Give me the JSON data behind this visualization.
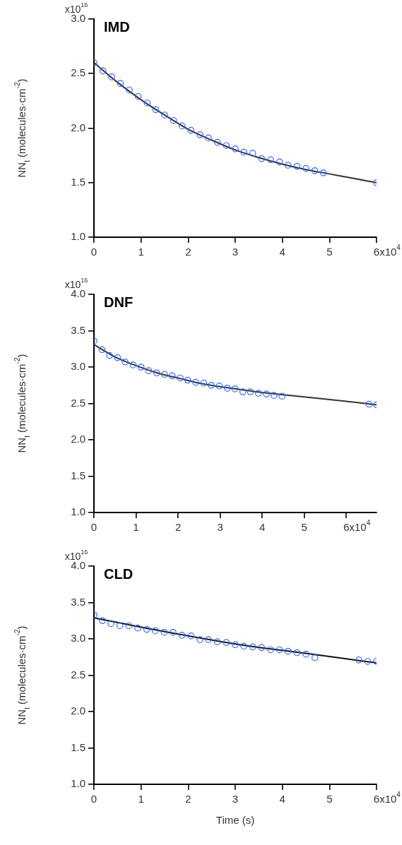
{
  "chart_data": [
    {
      "type": "scatter",
      "title": "IMD",
      "ylabel": "NN$_{t}$ (molecules·cm$^{-2}$)",
      "annotations": [
        "x10$^{16}$",
        "x10$^{4}$"
      ],
      "xlim": [
        0,
        6
      ],
      "xticks": [
        0,
        1,
        2,
        3,
        4,
        5,
        6
      ],
      "ylim": [
        1,
        3
      ],
      "yticks": [
        {
          "value": 1,
          "label": "1.0"
        },
        1.5,
        {
          "value": 2,
          "label": "2.0"
        },
        2.5,
        {
          "value": 3,
          "label": "3.0"
        }
      ],
      "grid": false,
      "legend": false,
      "series": [
        {
          "type": "scatter",
          "color": "#3366ff",
          "marker": "circle",
          "x": [
            0,
            0.19,
            0.375,
            0.56,
            0.75,
            0.94,
            1.13,
            1.31,
            1.5,
            1.69,
            1.87,
            2.06,
            2.25,
            2.43,
            2.62,
            2.81,
            3.0,
            3.18,
            3.37,
            3.56,
            3.75,
            3.94,
            4.12,
            4.31,
            4.5,
            4.69,
            4.87,
            6.0
          ],
          "values": [
            2.6,
            2.525,
            2.47,
            2.41,
            2.35,
            2.29,
            2.23,
            2.17,
            2.12,
            2.07,
            2.02,
            1.98,
            1.94,
            1.91,
            1.87,
            1.84,
            1.81,
            1.78,
            1.77,
            1.72,
            1.71,
            1.69,
            1.66,
            1.65,
            1.63,
            1.61,
            1.59,
            1.5
          ]
        },
        {
          "type": "line",
          "color": "#333333",
          "marker": "none",
          "line_style": "solid",
          "x": [
            0,
            0.5,
            1,
            1.5,
            2,
            2.5,
            3,
            3.5,
            4,
            4.5,
            5,
            5.5,
            6
          ],
          "values": [
            2.6,
            2.42,
            2.26,
            2.12,
            1.99,
            1.89,
            1.8,
            1.73,
            1.67,
            1.62,
            1.58,
            1.54,
            1.5
          ]
        }
      ]
    },
    {
      "type": "scatter",
      "title": "DNF",
      "ylabel": "NN$_{t}$ (molecules·cm$^{-2}$)",
      "annotations": [
        "x10$^{16}$",
        "x10$^{4}$"
      ],
      "xlim": [
        0,
        6.72
      ],
      "xticks": [
        0,
        1,
        2,
        3,
        4,
        5,
        6
      ],
      "ylim": [
        1,
        4
      ],
      "yticks": [
        {
          "value": 1,
          "label": "1.0"
        },
        1.5,
        {
          "value": 2,
          "label": "2.0"
        },
        2.5,
        {
          "value": 3,
          "label": "3.0"
        },
        3.5,
        {
          "value": 4,
          "label": "4.0"
        }
      ],
      "grid": false,
      "legend": false,
      "series": [
        {
          "type": "scatter",
          "color": "#3366ff",
          "marker": "circle",
          "x": [
            0,
            0.19,
            0.37,
            0.56,
            0.74,
            0.93,
            1.12,
            1.3,
            1.49,
            1.68,
            1.86,
            2.05,
            2.23,
            2.42,
            2.61,
            2.79,
            2.98,
            3.17,
            3.35,
            3.54,
            3.72,
            3.91,
            4.1,
            4.28,
            4.47,
            6.54,
            6.72
          ],
          "values": [
            3.36,
            3.24,
            3.16,
            3.13,
            3.07,
            3.03,
            3.0,
            2.95,
            2.92,
            2.9,
            2.88,
            2.85,
            2.82,
            2.79,
            2.78,
            2.75,
            2.74,
            2.71,
            2.7,
            2.66,
            2.66,
            2.64,
            2.63,
            2.61,
            2.6,
            2.49,
            2.48
          ]
        },
        {
          "type": "line",
          "color": "#333333",
          "marker": "none",
          "line_style": "solid",
          "x": [
            0,
            0.5,
            1,
            1.5,
            2,
            2.5,
            3,
            3.5,
            4,
            5,
            6,
            6.72
          ],
          "values": [
            3.31,
            3.14,
            3.02,
            2.92,
            2.85,
            2.78,
            2.73,
            2.69,
            2.65,
            2.59,
            2.53,
            2.48
          ]
        }
      ]
    },
    {
      "type": "scatter",
      "title": "CLD",
      "xlabel": "Time (s)",
      "ylabel": "NN$_{t}$ (molecules·cm$^{-2}$)",
      "annotations": [
        "x10$^{16}$",
        "x10$^{4}$"
      ],
      "xlim": [
        0,
        6
      ],
      "xticks": [
        0,
        1,
        2,
        3,
        4,
        5,
        6
      ],
      "ylim": [
        1,
        4
      ],
      "yticks": [
        {
          "value": 1,
          "label": "1.0"
        },
        1.5,
        {
          "value": 2,
          "label": "2.0"
        },
        2.5,
        {
          "value": 3,
          "label": "3.0"
        },
        3.5,
        {
          "value": 4,
          "label": "4.0"
        }
      ],
      "grid": false,
      "legend": false,
      "series": [
        {
          "type": "scatter",
          "color": "#3366ff",
          "marker": "circle",
          "x": [
            0,
            0.18,
            0.36,
            0.55,
            0.74,
            0.93,
            1.12,
            1.3,
            1.49,
            1.68,
            1.87,
            2.06,
            2.25,
            2.43,
            2.62,
            2.81,
            3.0,
            3.18,
            3.37,
            3.56,
            3.75,
            3.94,
            4.12,
            4.31,
            4.5,
            4.69,
            5.62,
            5.81,
            6.0
          ],
          "values": [
            3.33,
            3.25,
            3.21,
            3.18,
            3.18,
            3.15,
            3.13,
            3.11,
            3.09,
            3.09,
            3.05,
            3.04,
            2.99,
            2.99,
            2.96,
            2.95,
            2.92,
            2.9,
            2.89,
            2.88,
            2.85,
            2.85,
            2.83,
            2.81,
            2.79,
            2.74,
            2.71,
            2.69,
            2.69
          ]
        },
        {
          "type": "line",
          "color": "#111111",
          "marker": "none",
          "line_style": "solid",
          "x": [
            0,
            1.5,
            3,
            4.5,
            6
          ],
          "values": [
            3.29,
            3.1,
            2.93,
            2.8,
            2.67
          ]
        }
      ]
    }
  ]
}
